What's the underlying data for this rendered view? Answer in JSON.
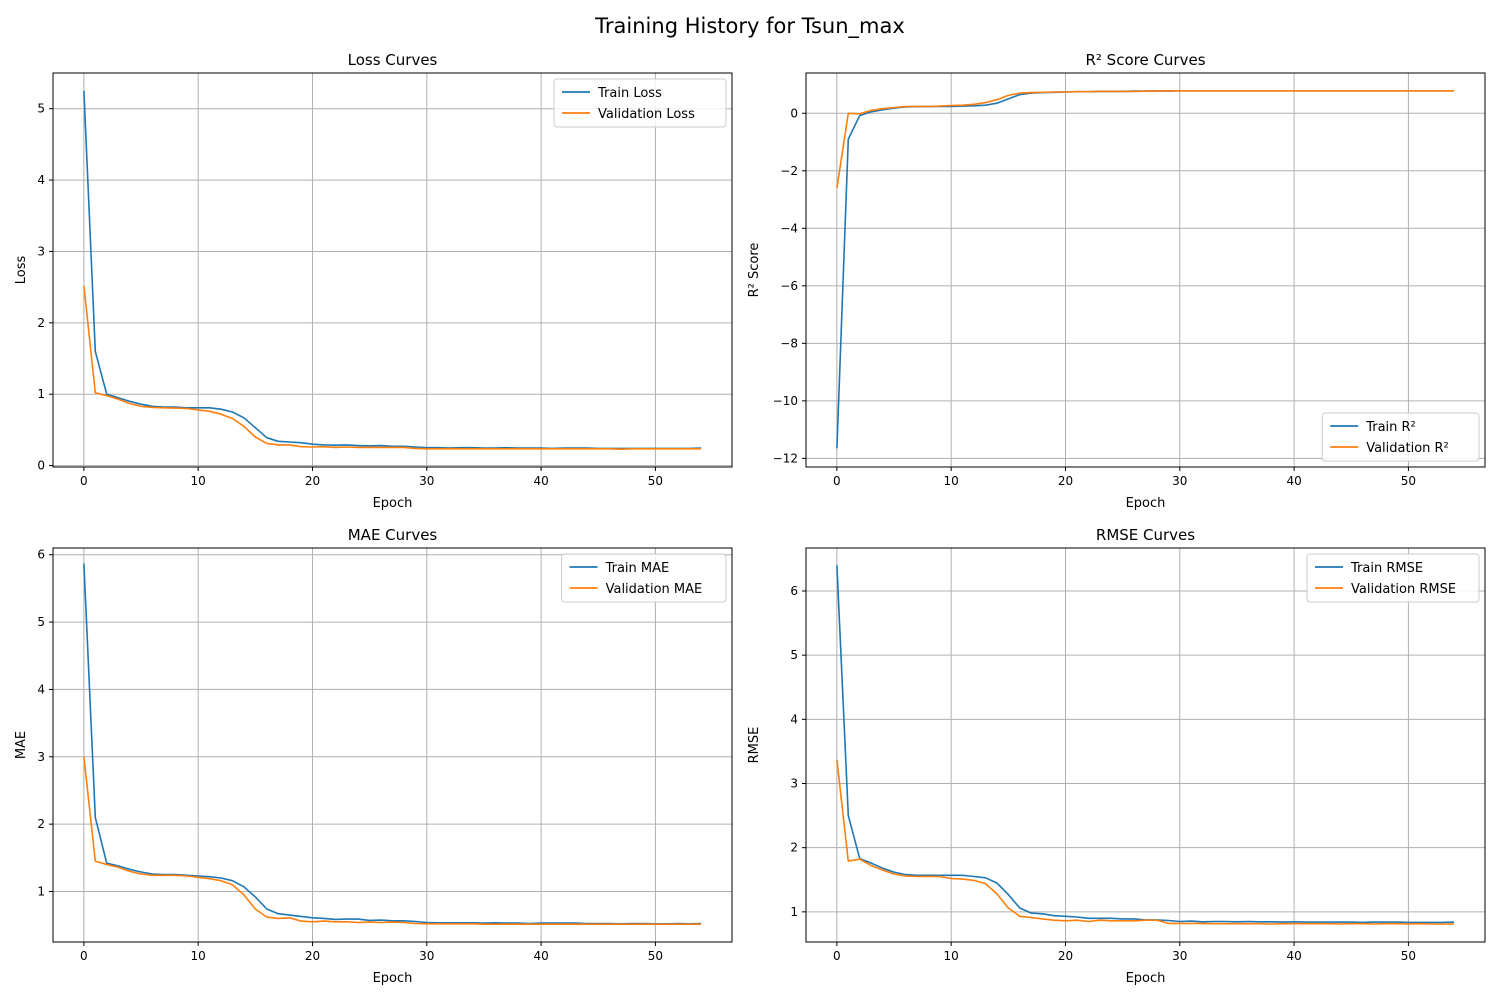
{
  "figure": {
    "suptitle": "Training History for Tsun_max",
    "colors": {
      "train": "#1f77b4",
      "validation": "#ff7f0e",
      "grid": "#b0b0b0"
    }
  },
  "chart_data": [
    {
      "type": "line",
      "title": "Loss Curves",
      "xlabel": "Epoch",
      "ylabel": "Loss",
      "xlim": [
        -2.7,
        56.7
      ],
      "ylim": [
        -0.02,
        5.5
      ],
      "xticks": [
        0,
        10,
        20,
        30,
        40,
        50
      ],
      "yticks": [
        0,
        1,
        2,
        3,
        4,
        5
      ],
      "ytick_labels": [
        "0",
        "1",
        "2",
        "3",
        "4",
        "5"
      ],
      "grid": true,
      "legend": "upper right",
      "series": [
        {
          "name": "Train Loss",
          "color": "#1f77b4",
          "x": [
            0,
            1,
            2,
            3,
            4,
            5,
            6,
            7,
            8,
            9,
            10,
            11,
            12,
            13,
            14,
            15,
            16,
            17,
            18,
            19,
            20,
            21,
            22,
            23,
            24,
            25,
            26,
            27,
            28,
            29,
            30,
            31,
            32,
            33,
            34,
            35,
            36,
            37,
            38,
            39,
            40,
            41,
            42,
            43,
            44,
            45,
            46,
            47,
            48,
            49,
            50,
            51,
            52,
            53,
            54
          ],
          "y": [
            5.25,
            1.6,
            1.0,
            0.95,
            0.9,
            0.86,
            0.83,
            0.82,
            0.82,
            0.81,
            0.81,
            0.81,
            0.79,
            0.75,
            0.67,
            0.53,
            0.39,
            0.34,
            0.33,
            0.32,
            0.3,
            0.29,
            0.285,
            0.29,
            0.28,
            0.275,
            0.28,
            0.27,
            0.27,
            0.26,
            0.25,
            0.25,
            0.245,
            0.25,
            0.25,
            0.245,
            0.245,
            0.25,
            0.245,
            0.245,
            0.245,
            0.24,
            0.245,
            0.245,
            0.245,
            0.24,
            0.24,
            0.24,
            0.24,
            0.24,
            0.24,
            0.24,
            0.24,
            0.24,
            0.245
          ]
        },
        {
          "name": "Validation Loss",
          "color": "#ff7f0e",
          "x": [
            0,
            1,
            2,
            3,
            4,
            5,
            6,
            7,
            8,
            9,
            10,
            11,
            12,
            13,
            14,
            15,
            16,
            17,
            18,
            19,
            20,
            21,
            22,
            23,
            24,
            25,
            26,
            27,
            28,
            29,
            30,
            31,
            32,
            33,
            34,
            35,
            36,
            37,
            38,
            39,
            40,
            41,
            42,
            43,
            44,
            45,
            46,
            47,
            48,
            49,
            50,
            51,
            52,
            53,
            54
          ],
          "y": [
            2.52,
            1.02,
            0.98,
            0.93,
            0.87,
            0.83,
            0.815,
            0.81,
            0.805,
            0.8,
            0.78,
            0.76,
            0.72,
            0.66,
            0.55,
            0.4,
            0.31,
            0.29,
            0.29,
            0.265,
            0.26,
            0.265,
            0.255,
            0.26,
            0.255,
            0.255,
            0.255,
            0.255,
            0.255,
            0.24,
            0.235,
            0.235,
            0.235,
            0.235,
            0.235,
            0.235,
            0.235,
            0.235,
            0.235,
            0.235,
            0.235,
            0.235,
            0.235,
            0.235,
            0.235,
            0.235,
            0.235,
            0.23,
            0.235,
            0.235,
            0.235,
            0.235,
            0.235,
            0.235,
            0.235
          ]
        }
      ]
    },
    {
      "type": "line",
      "title": "R² Score Curves",
      "xlabel": "Epoch",
      "ylabel": "R² Score",
      "xlim": [
        -2.7,
        56.7
      ],
      "ylim": [
        -12.3,
        1.4
      ],
      "xticks": [
        0,
        10,
        20,
        30,
        40,
        50
      ],
      "yticks": [
        0,
        -2,
        -4,
        -6,
        -8,
        -10,
        -12
      ],
      "ytick_labels": [
        "0",
        "−2",
        "−4",
        "−6",
        "−8",
        "−10",
        "−12"
      ],
      "grid": true,
      "legend": "lower right",
      "series": [
        {
          "name": "Train R²",
          "color": "#1f77b4",
          "x": [
            0,
            1,
            2,
            3,
            4,
            5,
            6,
            7,
            8,
            9,
            10,
            11,
            12,
            13,
            14,
            15,
            16,
            17,
            18,
            19,
            20,
            21,
            22,
            23,
            24,
            25,
            26,
            27,
            28,
            29,
            30,
            31,
            32,
            33,
            34,
            35,
            36,
            37,
            38,
            39,
            40,
            41,
            42,
            43,
            44,
            45,
            46,
            47,
            48,
            49,
            50,
            51,
            52,
            53,
            54
          ],
          "y": [
            -11.65,
            -0.9,
            -0.08,
            0.05,
            0.12,
            0.18,
            0.22,
            0.23,
            0.23,
            0.24,
            0.24,
            0.25,
            0.26,
            0.28,
            0.35,
            0.5,
            0.65,
            0.7,
            0.72,
            0.73,
            0.74,
            0.75,
            0.75,
            0.76,
            0.76,
            0.76,
            0.77,
            0.77,
            0.77,
            0.77,
            0.78,
            0.78,
            0.78,
            0.78,
            0.78,
            0.78,
            0.78,
            0.78,
            0.78,
            0.78,
            0.78,
            0.78,
            0.78,
            0.78,
            0.78,
            0.78,
            0.78,
            0.78,
            0.78,
            0.78,
            0.78,
            0.78,
            0.78,
            0.78,
            0.78
          ]
        },
        {
          "name": "Validation R²",
          "color": "#ff7f0e",
          "x": [
            0,
            1,
            2,
            3,
            4,
            5,
            6,
            7,
            8,
            9,
            10,
            11,
            12,
            13,
            14,
            15,
            16,
            17,
            18,
            19,
            20,
            21,
            22,
            23,
            24,
            25,
            26,
            27,
            28,
            29,
            30,
            31,
            32,
            33,
            34,
            35,
            36,
            37,
            38,
            39,
            40,
            41,
            42,
            43,
            44,
            45,
            46,
            47,
            48,
            49,
            50,
            51,
            52,
            53,
            54
          ],
          "y": [
            -2.6,
            0.0,
            -0.02,
            0.1,
            0.16,
            0.2,
            0.23,
            0.24,
            0.24,
            0.25,
            0.27,
            0.28,
            0.31,
            0.37,
            0.47,
            0.62,
            0.7,
            0.72,
            0.73,
            0.74,
            0.74,
            0.75,
            0.75,
            0.76,
            0.76,
            0.76,
            0.76,
            0.77,
            0.77,
            0.78,
            0.78,
            0.78,
            0.78,
            0.78,
            0.78,
            0.78,
            0.78,
            0.78,
            0.78,
            0.78,
            0.78,
            0.78,
            0.78,
            0.78,
            0.78,
            0.78,
            0.78,
            0.78,
            0.78,
            0.78,
            0.78,
            0.78,
            0.78,
            0.78,
            0.78
          ]
        }
      ]
    },
    {
      "type": "line",
      "title": "MAE Curves",
      "xlabel": "Epoch",
      "ylabel": "MAE",
      "xlim": [
        -2.7,
        56.7
      ],
      "ylim": [
        0.25,
        6.1
      ],
      "xticks": [
        0,
        10,
        20,
        30,
        40,
        50
      ],
      "yticks": [
        1,
        2,
        3,
        4,
        5,
        6
      ],
      "ytick_labels": [
        "1",
        "2",
        "3",
        "4",
        "5",
        "6"
      ],
      "grid": true,
      "legend": "upper right",
      "series": [
        {
          "name": "Train MAE",
          "color": "#1f77b4",
          "x": [
            0,
            1,
            2,
            3,
            4,
            5,
            6,
            7,
            8,
            9,
            10,
            11,
            12,
            13,
            14,
            15,
            16,
            17,
            18,
            19,
            20,
            21,
            22,
            23,
            24,
            25,
            26,
            27,
            28,
            29,
            30,
            31,
            32,
            33,
            34,
            35,
            36,
            37,
            38,
            39,
            40,
            41,
            42,
            43,
            44,
            45,
            46,
            47,
            48,
            49,
            50,
            51,
            52,
            53,
            54
          ],
          "y": [
            5.87,
            2.1,
            1.42,
            1.38,
            1.33,
            1.29,
            1.26,
            1.25,
            1.25,
            1.24,
            1.23,
            1.22,
            1.2,
            1.16,
            1.07,
            0.92,
            0.74,
            0.67,
            0.65,
            0.63,
            0.61,
            0.6,
            0.585,
            0.59,
            0.59,
            0.57,
            0.575,
            0.565,
            0.565,
            0.555,
            0.54,
            0.535,
            0.535,
            0.535,
            0.535,
            0.53,
            0.535,
            0.53,
            0.53,
            0.525,
            0.53,
            0.53,
            0.53,
            0.53,
            0.525,
            0.525,
            0.525,
            0.52,
            0.525,
            0.525,
            0.52,
            0.52,
            0.525,
            0.52,
            0.525
          ]
        },
        {
          "name": "Validation MAE",
          "color": "#ff7f0e",
          "x": [
            0,
            1,
            2,
            3,
            4,
            5,
            6,
            7,
            8,
            9,
            10,
            11,
            12,
            13,
            14,
            15,
            16,
            17,
            18,
            19,
            20,
            21,
            22,
            23,
            24,
            25,
            26,
            27,
            28,
            29,
            30,
            31,
            32,
            33,
            34,
            35,
            36,
            37,
            38,
            39,
            40,
            41,
            42,
            43,
            44,
            45,
            46,
            47,
            48,
            49,
            50,
            51,
            52,
            53,
            54
          ],
          "y": [
            3.0,
            1.45,
            1.4,
            1.36,
            1.3,
            1.26,
            1.24,
            1.24,
            1.24,
            1.23,
            1.21,
            1.19,
            1.16,
            1.1,
            0.95,
            0.74,
            0.62,
            0.6,
            0.61,
            0.56,
            0.55,
            0.56,
            0.55,
            0.55,
            0.54,
            0.545,
            0.54,
            0.545,
            0.54,
            0.525,
            0.52,
            0.52,
            0.52,
            0.52,
            0.52,
            0.515,
            0.515,
            0.515,
            0.515,
            0.515,
            0.515,
            0.515,
            0.515,
            0.515,
            0.515,
            0.515,
            0.515,
            0.515,
            0.515,
            0.515,
            0.515,
            0.515,
            0.515,
            0.515,
            0.515
          ]
        }
      ]
    },
    {
      "type": "line",
      "title": "RMSE Curves",
      "xlabel": "Epoch",
      "ylabel": "RMSE",
      "xlim": [
        -2.7,
        56.7
      ],
      "ylim": [
        0.53,
        6.67
      ],
      "xticks": [
        0,
        10,
        20,
        30,
        40,
        50
      ],
      "yticks": [
        1,
        2,
        3,
        4,
        5,
        6
      ],
      "ytick_labels": [
        "1",
        "2",
        "3",
        "4",
        "5",
        "6"
      ],
      "grid": true,
      "legend": "upper right",
      "series": [
        {
          "name": "Train RMSE",
          "color": "#1f77b4",
          "x": [
            0,
            1,
            2,
            3,
            4,
            5,
            6,
            7,
            8,
            9,
            10,
            11,
            12,
            13,
            14,
            15,
            16,
            17,
            18,
            19,
            20,
            21,
            22,
            23,
            24,
            25,
            26,
            27,
            28,
            29,
            30,
            31,
            32,
            33,
            34,
            35,
            36,
            37,
            38,
            39,
            40,
            41,
            42,
            43,
            44,
            45,
            46,
            47,
            48,
            49,
            50,
            51,
            52,
            53,
            54
          ],
          "y": [
            6.4,
            2.5,
            1.83,
            1.76,
            1.68,
            1.62,
            1.58,
            1.57,
            1.57,
            1.57,
            1.57,
            1.57,
            1.55,
            1.53,
            1.45,
            1.27,
            1.06,
            0.98,
            0.97,
            0.94,
            0.93,
            0.92,
            0.9,
            0.9,
            0.9,
            0.89,
            0.89,
            0.875,
            0.875,
            0.865,
            0.85,
            0.855,
            0.845,
            0.85,
            0.85,
            0.845,
            0.85,
            0.845,
            0.845,
            0.84,
            0.845,
            0.84,
            0.84,
            0.84,
            0.84,
            0.84,
            0.835,
            0.84,
            0.84,
            0.84,
            0.835,
            0.835,
            0.835,
            0.835,
            0.84
          ]
        },
        {
          "name": "Validation RMSE",
          "color": "#ff7f0e",
          "x": [
            0,
            1,
            2,
            3,
            4,
            5,
            6,
            7,
            8,
            9,
            10,
            11,
            12,
            13,
            14,
            15,
            16,
            17,
            18,
            19,
            20,
            21,
            22,
            23,
            24,
            25,
            26,
            27,
            28,
            29,
            30,
            31,
            32,
            33,
            34,
            35,
            36,
            37,
            38,
            39,
            40,
            41,
            42,
            43,
            44,
            45,
            46,
            47,
            48,
            49,
            50,
            51,
            52,
            53,
            54
          ],
          "y": [
            3.37,
            1.79,
            1.82,
            1.72,
            1.65,
            1.59,
            1.56,
            1.55,
            1.55,
            1.55,
            1.52,
            1.51,
            1.49,
            1.44,
            1.28,
            1.06,
            0.93,
            0.91,
            0.89,
            0.87,
            0.86,
            0.87,
            0.85,
            0.87,
            0.86,
            0.86,
            0.86,
            0.87,
            0.87,
            0.82,
            0.82,
            0.82,
            0.82,
            0.815,
            0.815,
            0.815,
            0.815,
            0.815,
            0.81,
            0.815,
            0.815,
            0.815,
            0.815,
            0.815,
            0.81,
            0.815,
            0.815,
            0.81,
            0.815,
            0.815,
            0.81,
            0.815,
            0.81,
            0.81,
            0.81
          ]
        }
      ]
    }
  ]
}
